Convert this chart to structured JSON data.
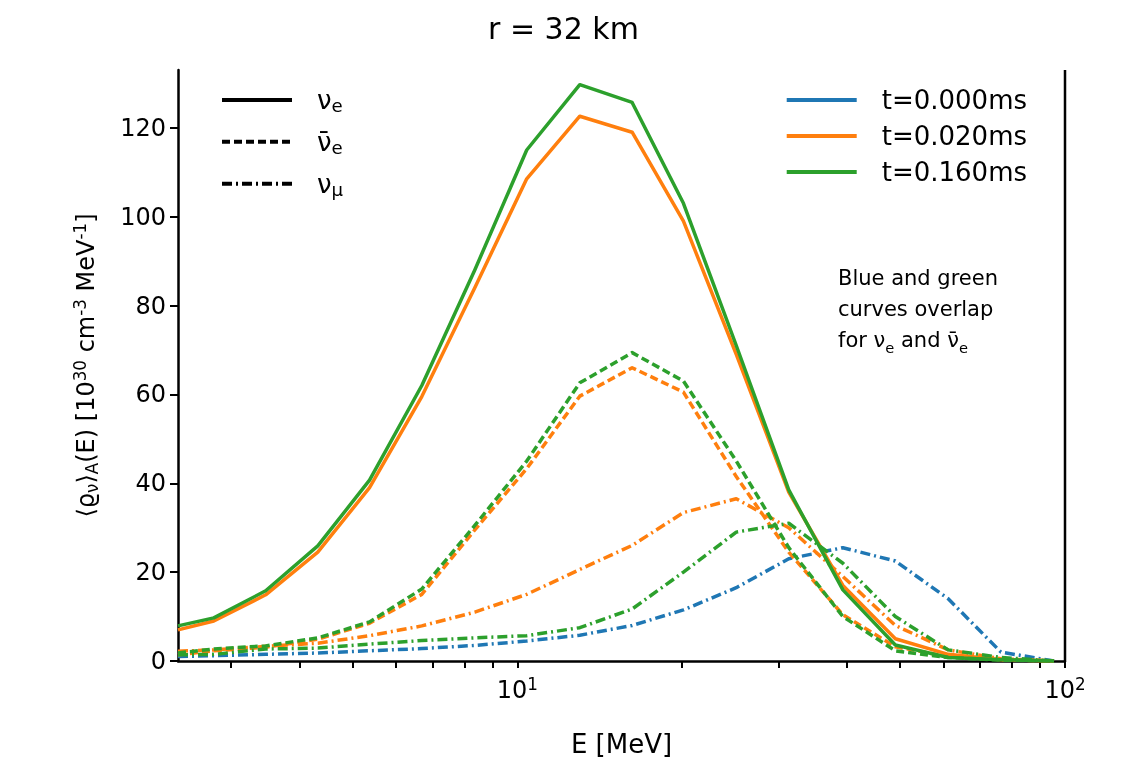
{
  "chart_data": {
    "type": "line",
    "title": "r = 32 km",
    "xlabel": "E [MeV]",
    "ylabel": "⟨ϱ$_{ν}$⟩$_{A}$(E) [10$^{30}$ cm$^{-3}$ MeV$^{-1}$]",
    "annotations": [
      "Blue and green\ncurves overlap\nfor ν$_{e}$ and ν̄$_{e}$"
    ],
    "log": "x",
    "grid": false,
    "legend": "top",
    "xlim": [
      2.4,
      100
    ],
    "xticks": [
      {
        "value": 3,
        "label": null
      },
      {
        "value": 4,
        "label": null
      },
      {
        "value": 5,
        "label": null
      },
      {
        "value": 6,
        "label": null
      },
      {
        "value": 7,
        "label": null
      },
      {
        "value": 8,
        "label": null
      },
      {
        "value": 9,
        "label": null
      },
      {
        "value": 10,
        "label": "10$^{1}$"
      },
      {
        "value": 20,
        "label": null
      },
      {
        "value": 30,
        "label": null
      },
      {
        "value": 40,
        "label": null
      },
      {
        "value": 50,
        "label": null
      },
      {
        "value": 60,
        "label": null
      },
      {
        "value": 70,
        "label": null
      },
      {
        "value": 80,
        "label": null
      },
      {
        "value": 90,
        "label": null
      },
      {
        "value": 100,
        "label": "10$^{2}$"
      }
    ],
    "ylim": [
      0,
      133
    ],
    "yticks": [
      0,
      20,
      40,
      60,
      80,
      100,
      120
    ],
    "x": [
      2.4,
      2.79,
      3.47,
      4.32,
      5.37,
      6.69,
      8.36,
      10.4,
      13.0,
      16.2,
      20.1,
      25.1,
      31.3,
      39.3,
      49.0,
      61.2,
      76.4,
      95.5
    ],
    "series": [
      {
        "name": "ν$_{e}$",
        "color": "#000000",
        "line_style": "solid",
        "values": [
          null,
          null,
          null,
          null,
          null,
          null,
          null,
          null,
          null,
          null,
          null,
          null,
          null,
          null,
          null,
          null,
          null,
          null
        ]
      },
      {
        "name": "ν̄$_{e}$",
        "color": "#000000",
        "line_style": "dashed",
        "values": [
          null,
          null,
          null,
          null,
          null,
          null,
          null,
          null,
          null,
          null,
          null,
          null,
          null,
          null,
          null,
          null,
          null,
          null
        ]
      },
      {
        "name": "ν$_{μ}$",
        "color": "#000000",
        "line_style": "dashdot",
        "values": [
          null,
          null,
          null,
          null,
          null,
          null,
          null,
          null,
          null,
          null,
          null,
          null,
          null,
          null,
          null,
          null,
          null,
          null
        ]
      },
      {
        "name": "t=0.000ms",
        "color": "#1f77b4",
        "line_style": "solid",
        "values": [
          null,
          null,
          null,
          null,
          null,
          null,
          null,
          null,
          null,
          null,
          null,
          null,
          null,
          null,
          null,
          null,
          null,
          null
        ]
      },
      {
        "color": "#1f77b4",
        "line_style": "dashdot",
        "values": [
          1.0,
          1.2,
          1.5,
          1.8,
          2.3,
          2.8,
          3.5,
          4.5,
          5.8,
          8,
          11.5,
          16.5,
          23,
          25.5,
          22.5,
          14,
          2,
          0
        ]
      },
      {
        "name": "t=0.020ms",
        "color": "#ff7f0e",
        "line_style": "solid",
        "values": [
          7.0,
          9.0,
          14.9,
          24.5,
          39,
          59.5,
          84,
          108.5,
          122.6,
          119,
          99,
          69,
          38,
          17,
          5,
          1.5,
          0.3,
          0
        ]
      },
      {
        "color": "#ff7f0e",
        "line_style": "dashed",
        "values": [
          1.4,
          2.3,
          3.1,
          4.9,
          8.5,
          15,
          29.5,
          43.3,
          59.6,
          66,
          60.5,
          41.5,
          24.5,
          10.4,
          3.2,
          1.0,
          0.3,
          0
        ]
      },
      {
        "color": "#ff7f0e",
        "line_style": "dashdot",
        "values": [
          2.2,
          2.5,
          3.3,
          4,
          5.7,
          7.9,
          11,
          15,
          20.6,
          26,
          33.4,
          36.5,
          30,
          19,
          8,
          2.5,
          0.5,
          0
        ]
      },
      {
        "name": "t=0.160ms",
        "color": "#2ca02c",
        "line_style": "solid",
        "values": [
          7.9,
          9.7,
          15.8,
          25.9,
          40.7,
          62,
          88,
          115,
          129.7,
          125.7,
          103,
          71,
          38.5,
          16,
          3.6,
          0.8,
          0.3,
          0
        ]
      },
      {
        "color": "#2ca02c",
        "line_style": "dashed",
        "values": [
          1.8,
          2.7,
          3.4,
          5.2,
          8.8,
          16.2,
          30.5,
          45,
          62.6,
          69.4,
          63,
          45,
          25.5,
          10,
          2.3,
          0.8,
          0.2,
          0
        ]
      },
      {
        "color": "#2ca02c",
        "line_style": "dashdot",
        "values": [
          1.4,
          1.5,
          2.7,
          2.9,
          3.8,
          4.6,
          5.2,
          5.7,
          7.5,
          11.7,
          20,
          29,
          31,
          22,
          10,
          2.5,
          0.8,
          0
        ]
      }
    ]
  }
}
